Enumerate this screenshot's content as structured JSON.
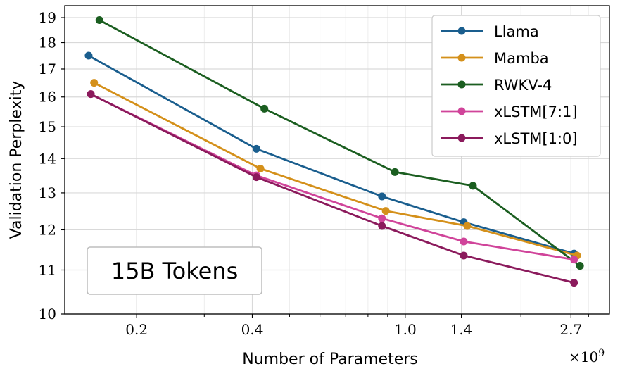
{
  "chart_data": {
    "type": "line",
    "xscale": "log",
    "yscale": "log",
    "xlabel": "Number of Parameters",
    "ylabel": "Validation Perplexity",
    "x_multiplier_label": "×10",
    "x_multiplier_exponent": "9",
    "annotation": "15B Tokens",
    "xlim": [
      0.13,
      3.4
    ],
    "ylim": [
      10,
      19.5
    ],
    "x_ticks": [
      {
        "value": 0.2,
        "label": "0.2"
      },
      {
        "value": 0.4,
        "label": "0.4"
      },
      {
        "value": 1.0,
        "label": "1.0"
      },
      {
        "value": 1.4,
        "label": "1.4"
      },
      {
        "value": 2.7,
        "label": "2.7"
      }
    ],
    "y_ticks": [
      {
        "value": 10,
        "label": "10"
      },
      {
        "value": 11,
        "label": "11"
      },
      {
        "value": 12,
        "label": "12"
      },
      {
        "value": 13,
        "label": "13"
      },
      {
        "value": 14,
        "label": "14"
      },
      {
        "value": 15,
        "label": "15"
      },
      {
        "value": 16,
        "label": "16"
      },
      {
        "value": 17,
        "label": "17"
      },
      {
        "value": 18,
        "label": "18"
      },
      {
        "value": 19,
        "label": "19"
      }
    ],
    "x_minor_ticks": [
      0.3,
      0.5,
      0.6,
      0.7,
      0.8,
      0.9,
      2.0,
      3.0
    ],
    "legend_position": "top-right",
    "series": [
      {
        "name": "Llama",
        "color": "#1a5e8e",
        "x": [
          0.15,
          0.41,
          0.87,
          1.42,
          2.75
        ],
        "y": [
          17.5,
          14.3,
          12.9,
          12.2,
          11.4
        ]
      },
      {
        "name": "Mamba",
        "color": "#d4901a",
        "x": [
          0.155,
          0.42,
          0.89,
          1.45,
          2.8
        ],
        "y": [
          16.5,
          13.7,
          12.5,
          12.1,
          11.35
        ]
      },
      {
        "name": "RWKV-4",
        "color": "#1b5e20",
        "x": [
          0.16,
          0.43,
          0.94,
          1.5,
          2.85
        ],
        "y": [
          18.9,
          15.6,
          13.6,
          13.2,
          11.1
        ]
      },
      {
        "name": "xLSTM[7:1]",
        "color": "#d0449a",
        "x": [
          0.152,
          0.41,
          0.87,
          1.42,
          2.75
        ],
        "y": [
          16.1,
          13.5,
          12.3,
          11.7,
          11.25
        ]
      },
      {
        "name": "xLSTM[1:0]",
        "color": "#8b1a5c",
        "x": [
          0.152,
          0.41,
          0.87,
          1.42,
          2.75
        ],
        "y": [
          16.1,
          13.45,
          12.1,
          11.35,
          10.7
        ]
      }
    ]
  }
}
